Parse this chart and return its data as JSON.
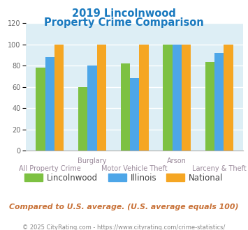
{
  "title_line1": "2019 Lincolnwood",
  "title_line2": "Property Crime Comparison",
  "title_color": "#1a7abf",
  "top_labels": [
    "",
    "Burglary",
    "",
    "Arson",
    ""
  ],
  "bottom_labels": [
    "All Property Crime",
    "",
    "Motor Vehicle Theft",
    "",
    "Larceny & Theft"
  ],
  "lincolnwood": [
    78,
    60,
    82,
    100,
    83
  ],
  "illinois": [
    88,
    80,
    68,
    100,
    92
  ],
  "national": [
    100,
    100,
    100,
    100,
    100
  ],
  "color_lincolnwood": "#7dc142",
  "color_illinois": "#4da6e8",
  "color_national": "#f5a623",
  "ylim": [
    0,
    120
  ],
  "yticks": [
    0,
    20,
    40,
    60,
    80,
    100,
    120
  ],
  "background_color": "#ddeef5",
  "footer_text": "Compared to U.S. average. (U.S. average equals 100)",
  "copyright_text": "© 2025 CityRating.com - https://www.cityrating.com/crime-statistics/",
  "footer_color": "#c87137",
  "copyright_color": "#888888",
  "legend_labels": [
    "Lincolnwood",
    "Illinois",
    "National"
  ]
}
